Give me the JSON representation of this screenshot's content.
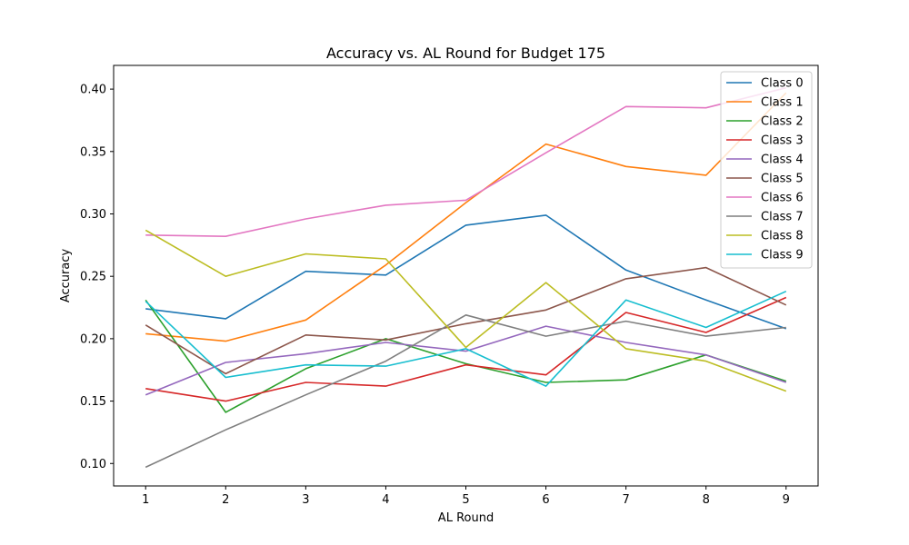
{
  "chart_data": {
    "type": "line",
    "title": "Accuracy vs. AL Round for Budget 175",
    "xlabel": "AL Round",
    "ylabel": "Accuracy",
    "x": [
      1,
      2,
      3,
      4,
      5,
      6,
      7,
      8,
      9
    ],
    "xlim": [
      0.6,
      9.4
    ],
    "ylim": [
      0.082,
      0.419
    ],
    "xticks": [
      1,
      2,
      3,
      4,
      5,
      6,
      7,
      8,
      9
    ],
    "yticks": [
      0.1,
      0.15,
      0.2,
      0.25,
      0.3,
      0.35,
      0.4
    ],
    "ytick_labels": [
      "0.10",
      "0.15",
      "0.20",
      "0.25",
      "0.30",
      "0.35",
      "0.40"
    ],
    "grid": false,
    "legend_position": "top-right",
    "series": [
      {
        "name": "Class 0",
        "color": "#1f77b4",
        "values": [
          0.224,
          0.216,
          0.254,
          0.251,
          0.291,
          0.299,
          0.255,
          0.231,
          0.208
        ]
      },
      {
        "name": "Class 1",
        "color": "#ff7f0e",
        "values": [
          0.204,
          0.198,
          0.215,
          0.259,
          0.309,
          0.356,
          0.338,
          0.331,
          0.397
        ]
      },
      {
        "name": "Class 2",
        "color": "#2ca02c",
        "values": [
          0.231,
          0.141,
          0.176,
          0.2,
          0.18,
          0.165,
          0.167,
          0.187,
          0.166
        ]
      },
      {
        "name": "Class 3",
        "color": "#d62728",
        "values": [
          0.16,
          0.15,
          0.165,
          0.162,
          0.179,
          0.171,
          0.221,
          0.205,
          0.233
        ]
      },
      {
        "name": "Class 4",
        "color": "#9467bd",
        "values": [
          0.155,
          0.181,
          0.188,
          0.197,
          0.19,
          0.21,
          0.197,
          0.187,
          0.165
        ]
      },
      {
        "name": "Class 5",
        "color": "#8c564b",
        "values": [
          0.211,
          0.172,
          0.203,
          0.199,
          0.212,
          0.223,
          0.248,
          0.257,
          0.227
        ]
      },
      {
        "name": "Class 6",
        "color": "#e377c2",
        "values": [
          0.283,
          0.282,
          0.296,
          0.307,
          0.311,
          0.349,
          0.386,
          0.385,
          0.401
        ]
      },
      {
        "name": "Class 7",
        "color": "#7f7f7f",
        "values": [
          0.097,
          0.127,
          0.155,
          0.182,
          0.219,
          0.202,
          0.214,
          0.202,
          0.209
        ]
      },
      {
        "name": "Class 8",
        "color": "#bcbd22",
        "values": [
          0.287,
          0.25,
          0.268,
          0.264,
          0.193,
          0.245,
          0.192,
          0.182,
          0.158
        ]
      },
      {
        "name": "Class 9",
        "color": "#17becf",
        "values": [
          0.23,
          0.169,
          0.179,
          0.178,
          0.192,
          0.162,
          0.231,
          0.209,
          0.238
        ]
      }
    ]
  }
}
